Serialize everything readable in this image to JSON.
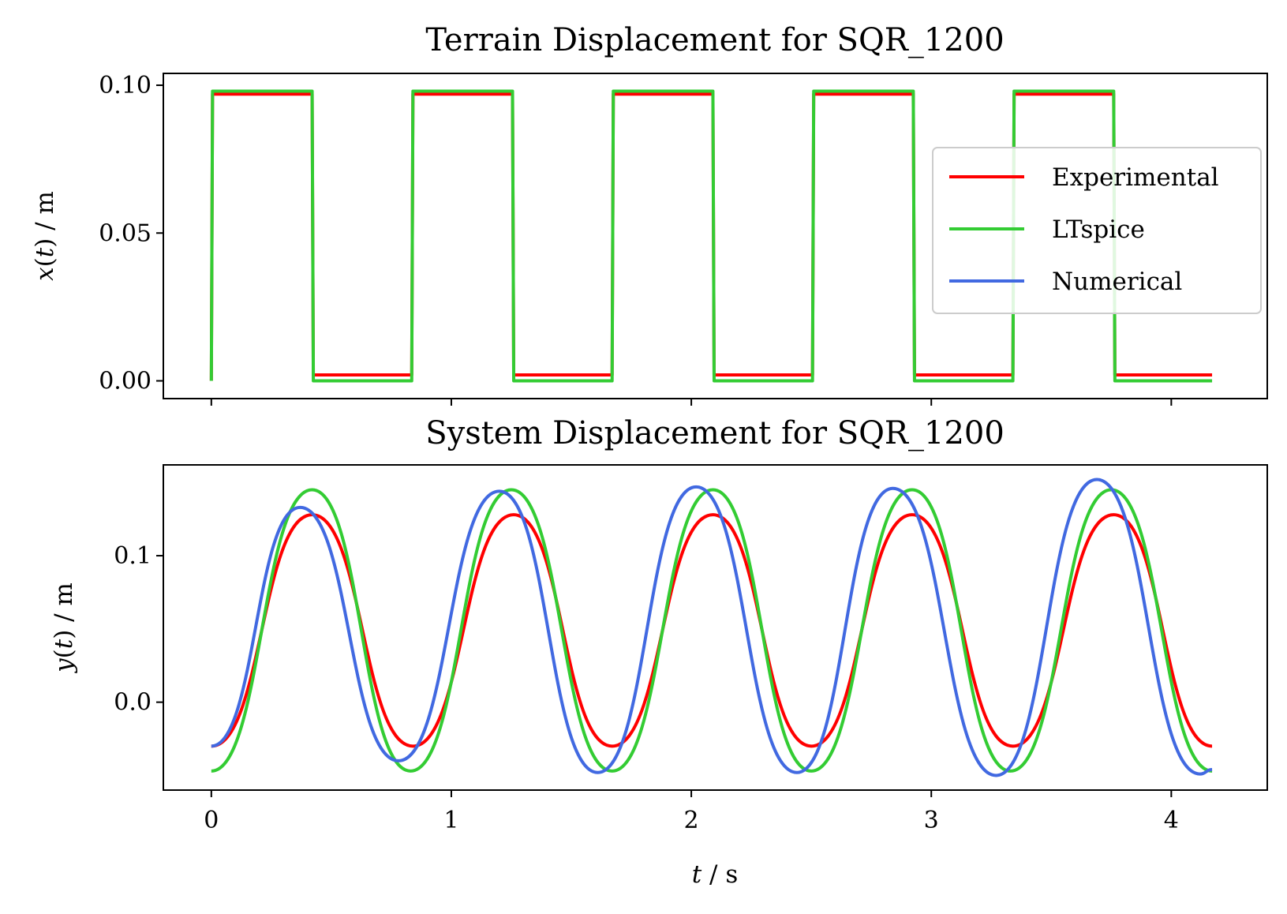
{
  "chart_data": [
    {
      "type": "line",
      "title": "Terrain Displacement for SQR_1200",
      "xlabel": "",
      "ylabel": "x(t) / m",
      "xlim": [
        -0.2,
        4.4
      ],
      "ylim": [
        -0.006,
        0.104
      ],
      "yticks": [
        0.0,
        0.05,
        0.1
      ],
      "ytick_labels": [
        "0.00",
        "0.05",
        "0.10"
      ],
      "xticks": [
        0,
        1,
        2,
        3,
        4
      ],
      "x_tick_labels_shown": false,
      "grid": false,
      "legend": {
        "position": "right",
        "entries": [
          "Experimental",
          "LTspice",
          "Numerical"
        ]
      },
      "series": [
        {
          "name": "Experimental",
          "color": "#ff0000",
          "description_values": {
            "low_level": 0.002,
            "high_level": 0.097,
            "period_s": 0.833,
            "start_s": 0.0,
            "end_s": 4.17
          },
          "x": [
            0.0,
            0.005,
            0.42,
            0.425,
            0.835,
            0.84,
            1.255,
            1.26,
            1.67,
            1.675,
            2.09,
            2.095,
            2.505,
            2.51,
            2.925,
            2.93,
            3.34,
            3.345,
            3.76,
            3.765,
            4.17
          ],
          "values": [
            0.0,
            0.097,
            0.097,
            0.002,
            0.002,
            0.097,
            0.097,
            0.002,
            0.002,
            0.097,
            0.097,
            0.002,
            0.002,
            0.097,
            0.097,
            0.002,
            0.002,
            0.097,
            0.097,
            0.002,
            0.002
          ]
        },
        {
          "name": "LTspice",
          "color": "#33cc33",
          "x": [
            0.0,
            0.005,
            0.42,
            0.425,
            0.835,
            0.84,
            1.255,
            1.26,
            1.67,
            1.675,
            2.09,
            2.095,
            2.505,
            2.51,
            2.925,
            2.93,
            3.34,
            3.345,
            3.76,
            3.765,
            4.17
          ],
          "values": [
            0.0,
            0.098,
            0.098,
            0.0,
            0.0,
            0.098,
            0.098,
            0.0,
            0.0,
            0.098,
            0.098,
            0.0,
            0.0,
            0.098,
            0.098,
            0.0,
            0.0,
            0.098,
            0.098,
            0.0,
            0.0
          ]
        }
      ]
    },
    {
      "type": "line",
      "title": "System Displacement for SQR_1200",
      "xlabel": "t / s",
      "ylabel": "y(t) / m",
      "xlim": [
        -0.2,
        4.4
      ],
      "ylim": [
        -0.06,
        0.162
      ],
      "xticks": [
        0,
        1,
        2,
        3,
        4
      ],
      "xtick_labels": [
        "0",
        "1",
        "2",
        "3",
        "4"
      ],
      "yticks": [
        0.0,
        0.1
      ],
      "ytick_labels": [
        "0.0",
        "0.1"
      ],
      "grid": false,
      "series": [
        {
          "name": "Experimental",
          "color": "#ff0000",
          "x": [
            0.0,
            0.42,
            0.84,
            1.26,
            1.67,
            2.09,
            2.5,
            2.92,
            3.34,
            3.76,
            4.17
          ],
          "values": [
            -0.03,
            0.128,
            -0.03,
            0.128,
            -0.03,
            0.128,
            -0.03,
            0.128,
            -0.03,
            0.128,
            -0.03
          ]
        },
        {
          "name": "LTspice",
          "color": "#33cc33",
          "x": [
            0.0,
            0.42,
            0.83,
            1.25,
            1.67,
            2.09,
            2.5,
            2.92,
            3.33,
            3.75,
            4.17
          ],
          "values": [
            -0.047,
            0.145,
            -0.047,
            0.145,
            -0.047,
            0.145,
            -0.047,
            0.145,
            -0.047,
            0.145,
            -0.047
          ]
        },
        {
          "name": "Numerical",
          "color": "#4169e1",
          "x": [
            0.0,
            0.37,
            0.78,
            1.2,
            1.61,
            2.02,
            2.44,
            2.84,
            3.27,
            3.69,
            4.12,
            4.17
          ],
          "values": [
            -0.03,
            0.133,
            -0.04,
            0.144,
            -0.048,
            0.147,
            -0.048,
            0.146,
            -0.05,
            0.152,
            -0.049,
            -0.046
          ]
        }
      ]
    }
  ]
}
